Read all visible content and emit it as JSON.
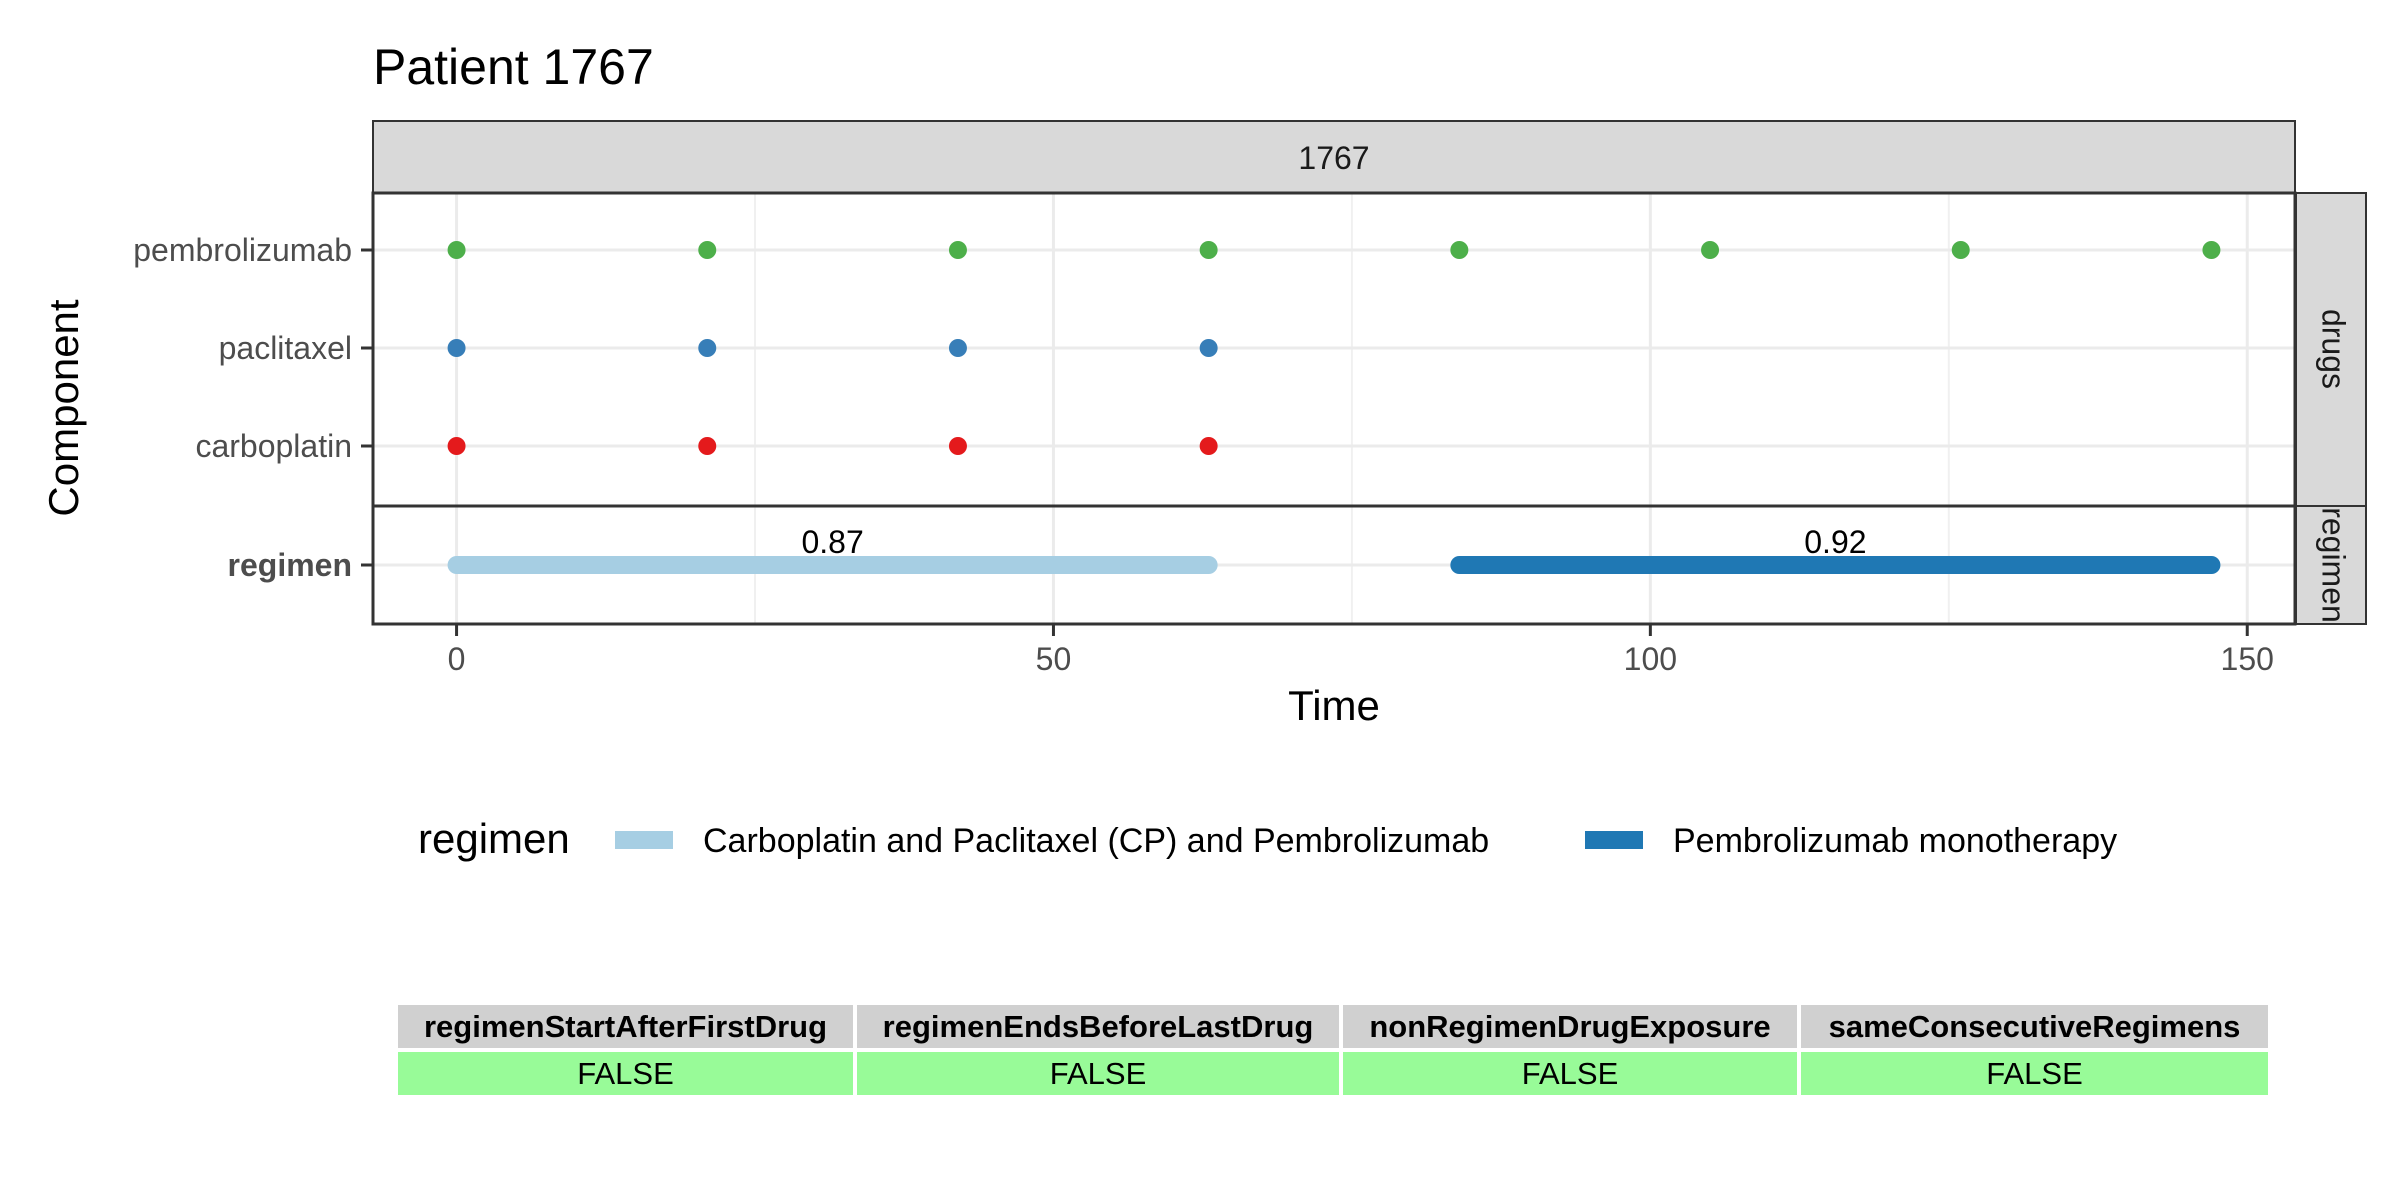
{
  "chart_data": {
    "type": "timeline",
    "title": "Patient 1767",
    "facet_top_label": "1767",
    "xlabel": "Time",
    "ylabel": "Component",
    "xlim": [
      -7,
      154
    ],
    "x_ticks": [
      0,
      50,
      100,
      150
    ],
    "panels": [
      {
        "strip_label": "drugs",
        "rows": [
          "pembrolizumab",
          "paclitaxel",
          "carboplatin"
        ],
        "series": [
          {
            "name": "pembrolizumab",
            "color": "#4daf4a",
            "x": [
              0,
              21,
              42,
              63,
              84,
              105,
              126,
              147
            ]
          },
          {
            "name": "paclitaxel",
            "color": "#377eb8",
            "x": [
              0,
              21,
              42,
              63
            ]
          },
          {
            "name": "carboplatin",
            "color": "#e41a1c",
            "x": [
              0,
              21,
              42,
              63
            ]
          }
        ]
      },
      {
        "strip_label": "regimen",
        "rows": [
          "regimen"
        ],
        "segments": [
          {
            "regimen": "Carboplatin and Paclitaxel (CP) and Pembrolizumab",
            "start": 0,
            "end": 63,
            "score": "0.87",
            "color": "#a6cee3"
          },
          {
            "regimen": "Pembrolizumab monotherapy",
            "start": 84,
            "end": 147,
            "score": "0.92",
            "color": "#1f78b4"
          }
        ]
      }
    ],
    "legend": {
      "title": "regimen",
      "position": "bottom",
      "items": [
        {
          "label": "Carboplatin and Paclitaxel (CP) and Pembrolizumab",
          "color": "#a6cee3"
        },
        {
          "label": "Pembrolizumab monotherapy",
          "color": "#1f78b4"
        }
      ]
    }
  },
  "table": {
    "headers": [
      "regimenStartAfterFirstDrug",
      "regimenEndsBeforeLastDrug",
      "nonRegimenDrugExposure",
      "sameConsecutiveRegimens"
    ],
    "values": [
      "FALSE",
      "FALSE",
      "FALSE",
      "FALSE"
    ],
    "true_color": "#98fb98"
  }
}
